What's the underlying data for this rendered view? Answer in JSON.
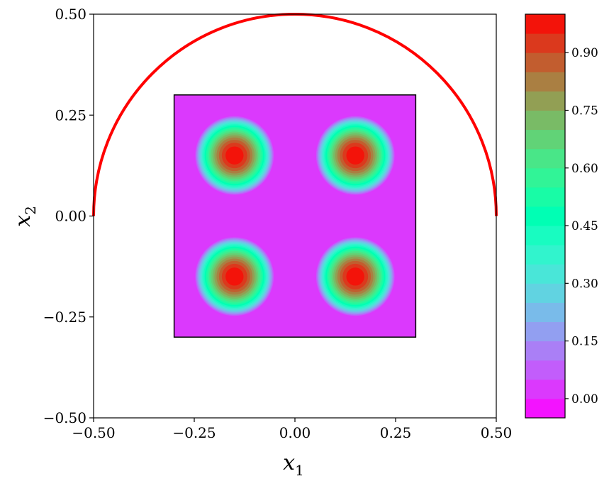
{
  "chart_data": {
    "type": "heatmap",
    "title": "",
    "xlabel": "x",
    "xlabel_sub": "1",
    "ylabel": "x",
    "ylabel_sub": "2",
    "xlim": [
      -0.5,
      0.5
    ],
    "ylim": [
      -0.5,
      0.5
    ],
    "x_ticks": [
      -0.5,
      -0.25,
      0.0,
      0.25,
      0.5
    ],
    "x_tick_labels": [
      "−0.50",
      "−0.25",
      "0.00",
      "0.25",
      "0.50"
    ],
    "y_ticks": [
      -0.5,
      -0.25,
      0.0,
      0.25,
      0.5
    ],
    "y_tick_labels": [
      "−0.50",
      "−0.25",
      "0.00",
      "0.25",
      "0.50"
    ],
    "grid": false,
    "field": {
      "domain_x": [
        -0.3,
        0.3
      ],
      "domain_y": [
        -0.3,
        0.3
      ],
      "background_value": 0.0,
      "peaks": [
        {
          "x": -0.15,
          "y": 0.15,
          "value": 1.0,
          "radius": 0.1
        },
        {
          "x": 0.15,
          "y": 0.15,
          "value": 1.0,
          "radius": 0.1
        },
        {
          "x": -0.15,
          "y": -0.15,
          "value": 1.0,
          "radius": 0.1
        },
        {
          "x": 0.15,
          "y": -0.15,
          "value": 1.0,
          "radius": 0.1
        }
      ]
    },
    "curve": {
      "shape": "semicircle",
      "center": [
        0.0,
        0.0
      ],
      "radius": 0.5,
      "color": "#ff0000"
    },
    "colorbar": {
      "colormap": "rainbow",
      "range": [
        -0.05,
        1.0
      ],
      "levels": 21,
      "ticks": [
        0.0,
        0.15,
        0.3,
        0.45,
        0.6,
        0.75,
        0.9
      ],
      "tick_labels": [
        "0.00",
        "0.15",
        "0.30",
        "0.45",
        "0.60",
        "0.75",
        "0.90"
      ]
    }
  }
}
